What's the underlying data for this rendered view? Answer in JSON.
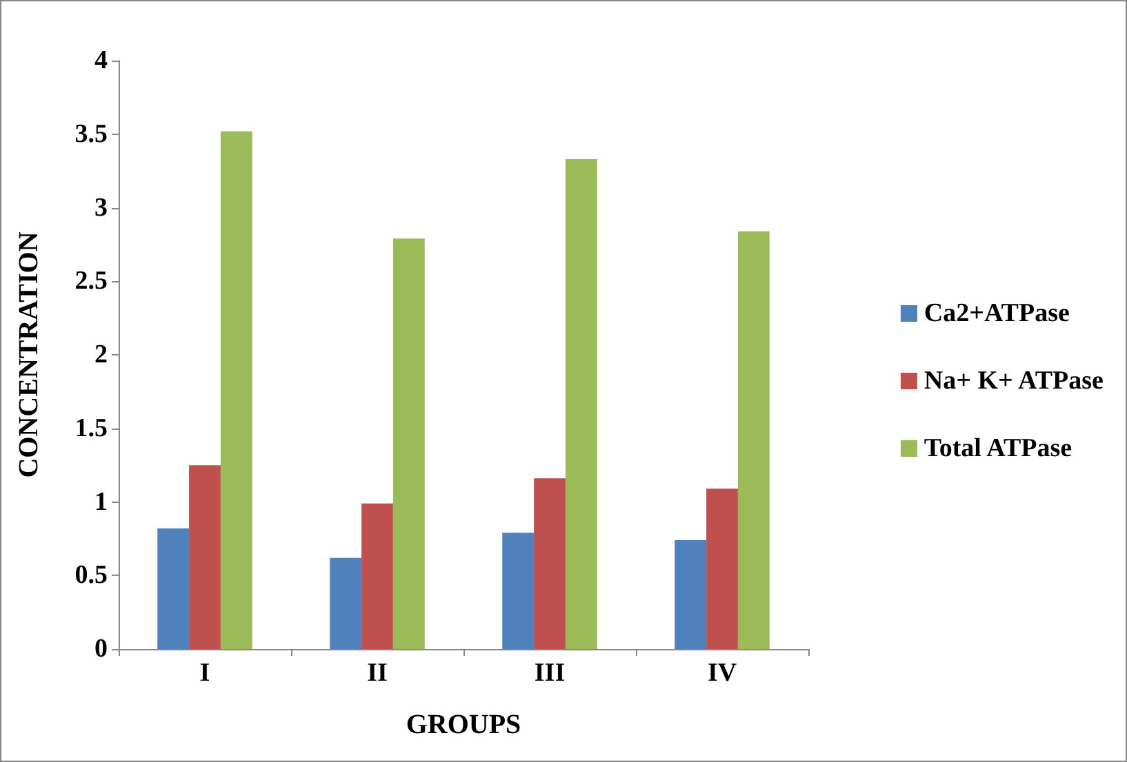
{
  "chart_data": {
    "type": "bar",
    "xlabel": "GROUPS",
    "ylabel": "CONCENTRATION",
    "categories": [
      "I",
      "II",
      "III",
      "IV"
    ],
    "series": [
      {
        "name": "Ca2+ATPase",
        "color": "#4f81bd",
        "values": [
          0.82,
          0.62,
          0.79,
          0.74
        ]
      },
      {
        "name": "Na+ K+ ATPase",
        "color": "#c0504d",
        "values": [
          1.25,
          0.99,
          1.16,
          1.09
        ]
      },
      {
        "name": "Total ATPase",
        "color": "#9bbb59",
        "values": [
          3.52,
          2.79,
          3.33,
          2.84
        ]
      }
    ],
    "ylim": [
      0,
      4
    ],
    "yticks": [
      0,
      0.5,
      1,
      1.5,
      2,
      2.5,
      3,
      3.5,
      4
    ],
    "grid": false,
    "legend": "right"
  }
}
